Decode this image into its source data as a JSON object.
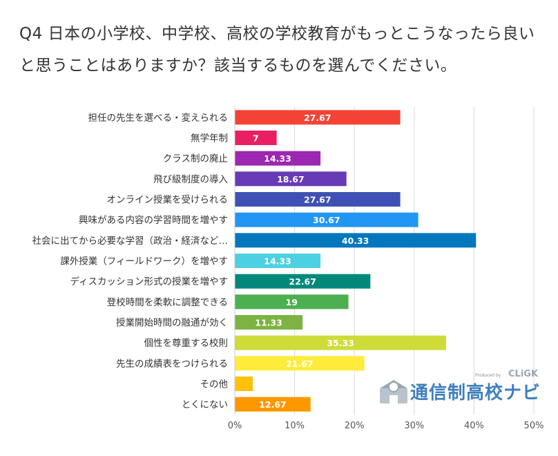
{
  "title": "Q4 日本の小学校、中学校、高校の学校教育がもっとこうなったら良いと思うことはありますか？該当するものを選んでください。",
  "logo": {
    "text": "通信制高校ナビ",
    "produced_by": "Produced by",
    "brand": "CLiGK"
  },
  "chart_data": {
    "type": "bar",
    "orientation": "horizontal",
    "title": "Q4 日本の小学校、中学校、高校の学校教育がもっとこうなったら良いと思うことはありますか？該当するものを選んでください。",
    "xlabel": "",
    "ylabel": "",
    "xlim": [
      0,
      50
    ],
    "ticks": [
      "0%",
      "10%",
      "20%",
      "30%",
      "40%",
      "50%"
    ],
    "grid": true,
    "categories": [
      "担任の先生を選べる・変えられる",
      "無学年制",
      "クラス制の廃止",
      "飛び級制度の導入",
      "オンライン授業を受けられる",
      "興味がある内容の学習時間を増やす",
      "社会に出てから必要な学習（政治・経済など…",
      "課外授業（フィールドワーク）を増やす",
      "ディスカッション形式の授業を増やす",
      "登校時間を柔軟に調整できる",
      "授業開始時間の融通が効く",
      "個性を尊重する校則",
      "先生の成績表をつけられる",
      "その他",
      "とくにない"
    ],
    "values": [
      27.67,
      7,
      14.33,
      18.67,
      27.67,
      30.67,
      40.33,
      14.33,
      22.67,
      19,
      11.33,
      35.33,
      21.67,
      3,
      12.67
    ],
    "value_labels": [
      "27.67",
      "7",
      "14.33",
      "18.67",
      "27.67",
      "30.67",
      "40.33",
      "14.33",
      "22.67",
      "19",
      "11.33",
      "35.33",
      "21.67",
      "",
      "12.67"
    ],
    "colors": [
      "#f44336",
      "#e91e63",
      "#9c27b0",
      "#673ab7",
      "#3f51b5",
      "#2196f3",
      "#0277bd",
      "#4dd0e1",
      "#00897b",
      "#4caf50",
      "#7cb342",
      "#cddc39",
      "#ffeb3b",
      "#ffc107",
      "#ff9800"
    ]
  }
}
